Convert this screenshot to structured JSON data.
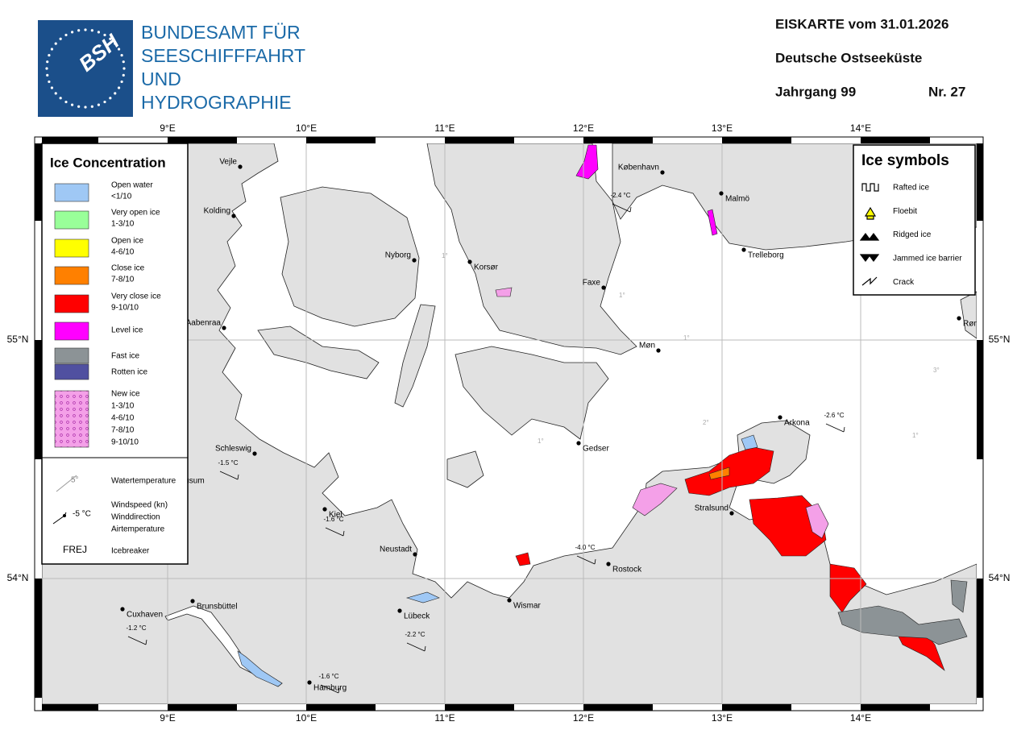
{
  "header": {
    "logo_text": "BSH",
    "agency": [
      "BUNDESAMT FÜR",
      "SEESCHIFFFAHRT",
      "UND",
      "HYDROGRAPHIE"
    ],
    "title": "EISKARTE vom 31.01.2026",
    "region": "Deutsche Ostseeküste",
    "volume": "Jahrgang 99",
    "number": "Nr. 27"
  },
  "map": {
    "longitudes": [
      "9°E",
      "10°E",
      "11°E",
      "12°E",
      "13°E",
      "14°E"
    ],
    "latitudes": [
      "55°N",
      "54°N"
    ],
    "places": [
      "Vejle",
      "Kolding",
      "Nyborg",
      "Korsør",
      "København",
      "Malmö",
      "Trelleborg",
      "Faxe",
      "Møn",
      "Aabenraa",
      "Rønne",
      "Arkona",
      "Gedser",
      "Stralsund",
      "Rostock",
      "Wismar",
      "Lübeck",
      "Neustadt",
      "Kiel",
      "Schleswig",
      "Husum",
      "Brunsbüttel",
      "Cuxhaven",
      "Hamburg"
    ],
    "air_temperatures": [
      "-2.4 °C",
      "-2.6 °C",
      "-1.5 °C",
      "-1.6 °C",
      "-4.0 °C",
      "-2.2 °C",
      "-1.2 °C",
      "-1.6 °C"
    ],
    "isotherms": [
      "1°",
      "1°",
      "1°",
      "2°",
      "3°",
      "1°",
      "1°"
    ]
  },
  "legend": {
    "title": "Ice Concentration",
    "items": [
      {
        "label": "Open water",
        "detail": "<1/10",
        "color": "#9fc8f5"
      },
      {
        "label": "Very open ice",
        "detail": "1-3/10",
        "color": "#99ff99"
      },
      {
        "label": "Open ice",
        "detail": "4-6/10",
        "color": "#ffff00"
      },
      {
        "label": "Close ice",
        "detail": "7-8/10",
        "color": "#ff8000"
      },
      {
        "label": "Very close ice",
        "detail": "9-10/10",
        "color": "#ff0000"
      },
      {
        "label": "Level ice",
        "color": "#ff00ff"
      },
      {
        "label": "Fast ice",
        "color": "#8c9396"
      },
      {
        "label": "Rotten ice",
        "color": "#5050a0"
      }
    ],
    "new_ice": {
      "label": "New ice",
      "steps": [
        "1-3/10",
        "4-6/10",
        "7-8/10",
        "9-10/10"
      ]
    },
    "watertemp": {
      "symbol": "5°",
      "label": "Watertemperature"
    },
    "wind": {
      "symbol": "-5 °C",
      "lines": [
        "Windspeed (kn)",
        "Winddirection",
        "Airtemperature"
      ]
    },
    "icebreaker": {
      "symbol": "FREJ",
      "label": "Icebreaker"
    }
  },
  "symbols": {
    "title": "Ice symbols",
    "items": [
      "Rafted ice",
      "Floebit",
      "Ridged ice",
      "Jammed ice barrier",
      "Crack"
    ]
  }
}
